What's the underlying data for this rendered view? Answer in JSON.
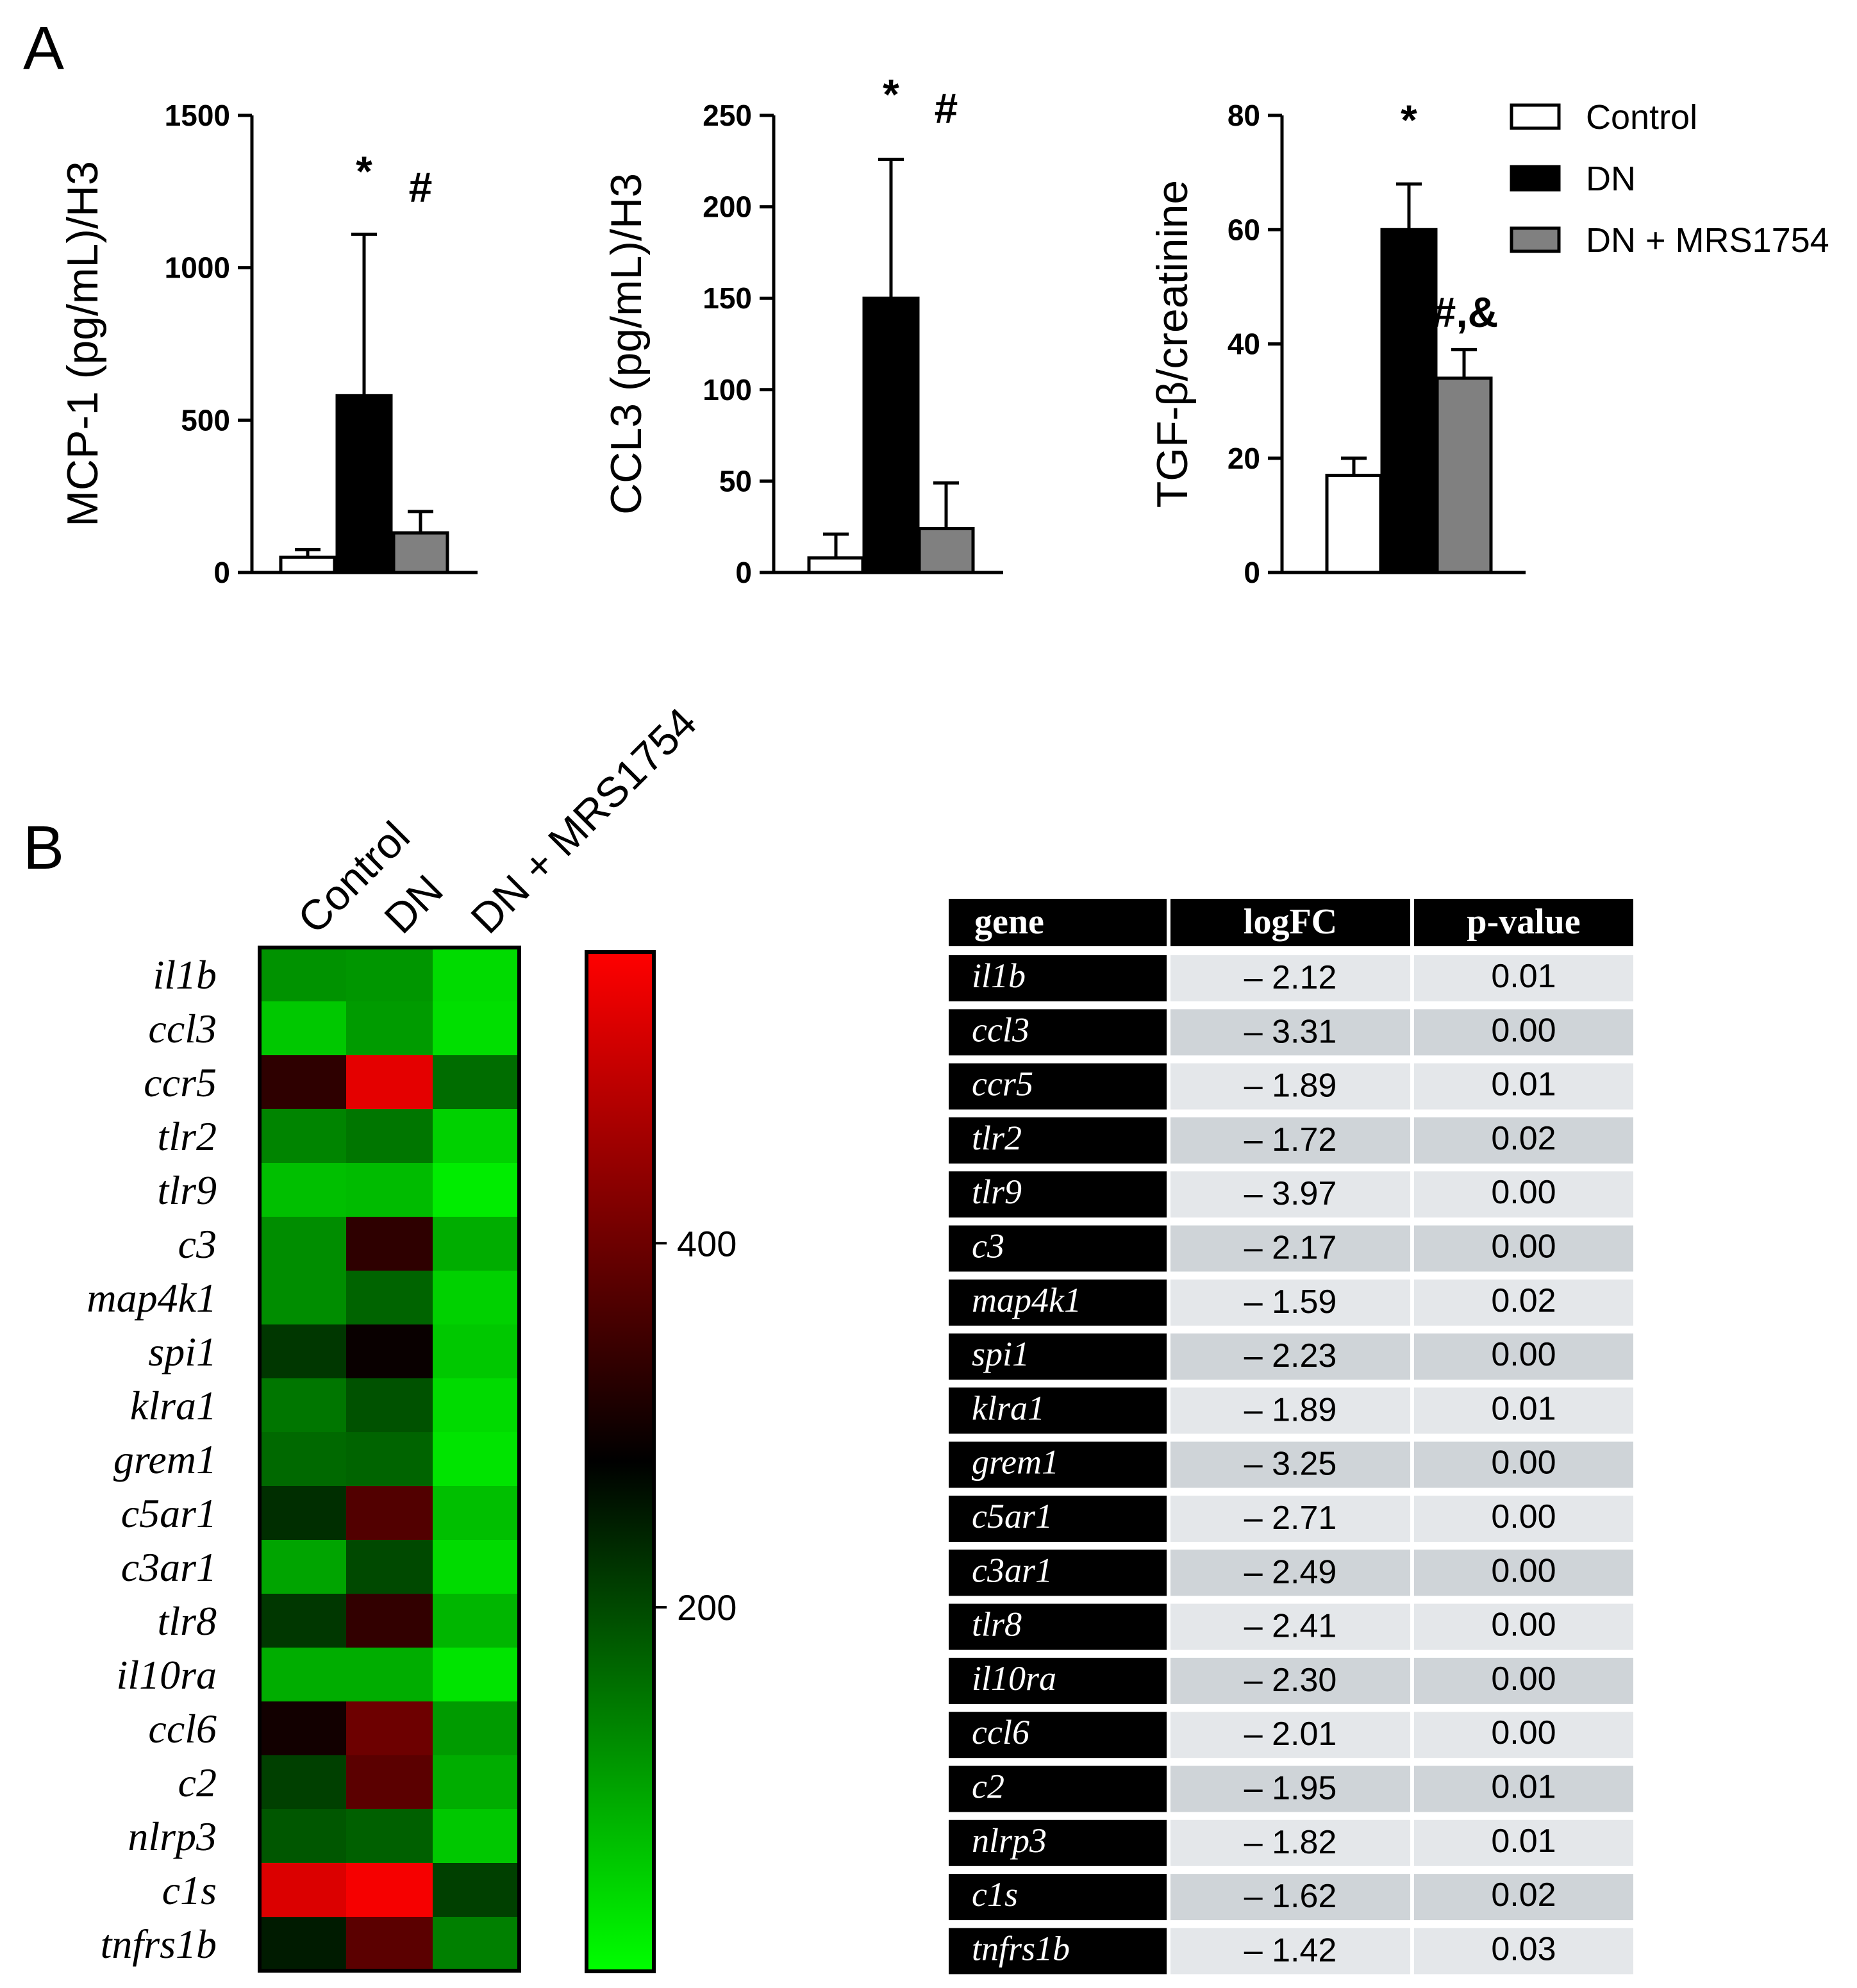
{
  "panels": {
    "a": "A",
    "b": "B"
  },
  "chart_data": [
    {
      "type": "bar",
      "ylabel": "MCP-1 (pg/mL)/H3",
      "ylim": [
        0,
        1500
      ],
      "yticks": [
        0,
        500,
        1000,
        1500
      ],
      "categories": [
        "Control",
        "DN",
        "DN + MRS1754"
      ],
      "values": [
        50,
        580,
        130
      ],
      "errors": [
        25,
        530,
        70
      ],
      "colors": [
        "#ffffff",
        "#000000",
        "#808080"
      ],
      "annotations": [
        {
          "bar": 1,
          "text": "*"
        },
        {
          "bar": 2,
          "text": "#"
        }
      ]
    },
    {
      "type": "bar",
      "ylabel": "CCL3 (pg/mL)/H3",
      "ylim": [
        0,
        250
      ],
      "yticks": [
        0,
        50,
        100,
        150,
        200,
        250
      ],
      "categories": [
        "Control",
        "DN",
        "DN + MRS1754"
      ],
      "values": [
        8,
        150,
        24
      ],
      "errors": [
        13,
        76,
        25
      ],
      "colors": [
        "#ffffff",
        "#000000",
        "#808080"
      ],
      "annotations": [
        {
          "bar": 1,
          "text": "*"
        },
        {
          "bar": 2,
          "text": "#"
        }
      ]
    },
    {
      "type": "bar",
      "ylabel": "TGF-β/creatinine",
      "ylim": [
        0,
        80
      ],
      "yticks": [
        0,
        20,
        40,
        60,
        80
      ],
      "categories": [
        "Control",
        "DN",
        "DN + MRS1754"
      ],
      "values": [
        17,
        60,
        34
      ],
      "errors": [
        3,
        8,
        5
      ],
      "colors": [
        "#ffffff",
        "#000000",
        "#808080"
      ],
      "annotations": [
        {
          "bar": 1,
          "text": "*"
        },
        {
          "bar": 2,
          "text": "#,&"
        }
      ]
    },
    {
      "type": "heatmap",
      "columns": [
        "Control",
        "DN",
        "DN + MRS1754"
      ],
      "rows": [
        "il1b",
        "ccl3",
        "ccr5",
        "tlr2",
        "tlr9",
        "c3",
        "map4k1",
        "spi1",
        "klra1",
        "grem1",
        "c5ar1",
        "c3ar1",
        "tlr8",
        "il10ra",
        "ccl6",
        "c2",
        "nlrp3",
        "c1s",
        "tnfrs1b"
      ],
      "values": [
        [
          120,
          115,
          40
        ],
        [
          60,
          110,
          35
        ],
        [
          330,
          530,
          160
        ],
        [
          135,
          150,
          50
        ],
        [
          70,
          75,
          20
        ],
        [
          125,
          330,
          90
        ],
        [
          125,
          170,
          50
        ],
        [
          220,
          290,
          60
        ],
        [
          150,
          190,
          40
        ],
        [
          165,
          170,
          30
        ],
        [
          230,
          370,
          70
        ],
        [
          100,
          200,
          40
        ],
        [
          220,
          335,
          80
        ],
        [
          90,
          90,
          30
        ],
        [
          300,
          400,
          110
        ],
        [
          210,
          380,
          90
        ],
        [
          185,
          175,
          60
        ],
        [
          520,
          550,
          210
        ],
        [
          250,
          380,
          140
        ]
      ],
      "scale": {
        "min": 0,
        "max": 560,
        "ticks": [
          200,
          400
        ],
        "low_color": "#00ff00",
        "mid_color": "#000000",
        "high_color": "#ff0000"
      }
    },
    {
      "type": "table",
      "headers": [
        "gene",
        "logFC",
        "p-value"
      ],
      "rows": [
        [
          "il1b",
          "– 2.12",
          "0.01"
        ],
        [
          "ccl3",
          "– 3.31",
          "0.00"
        ],
        [
          "ccr5",
          "– 1.89",
          "0.01"
        ],
        [
          "tlr2",
          "– 1.72",
          "0.02"
        ],
        [
          "tlr9",
          "– 3.97",
          "0.00"
        ],
        [
          "c3",
          "– 2.17",
          "0.00"
        ],
        [
          "map4k1",
          "– 1.59",
          "0.02"
        ],
        [
          "spi1",
          "– 2.23",
          "0.00"
        ],
        [
          "klra1",
          "– 1.89",
          "0.01"
        ],
        [
          "grem1",
          "– 3.25",
          "0.00"
        ],
        [
          "c5ar1",
          "– 2.71",
          "0.00"
        ],
        [
          "c3ar1",
          "– 2.49",
          "0.00"
        ],
        [
          "tlr8",
          "– 2.41",
          "0.00"
        ],
        [
          "il10ra",
          "– 2.30",
          "0.00"
        ],
        [
          "ccl6",
          "– 2.01",
          "0.00"
        ],
        [
          "c2",
          "– 1.95",
          "0.01"
        ],
        [
          "nlrp3",
          "– 1.82",
          "0.01"
        ],
        [
          "c1s",
          "– 1.62",
          "0.02"
        ],
        [
          "tnfrs1b",
          "– 1.42",
          "0.03"
        ]
      ]
    }
  ],
  "legend": [
    {
      "label": "Control",
      "color": "#ffffff"
    },
    {
      "label": "DN",
      "color": "#000000"
    },
    {
      "label": "DN + MRS1754",
      "color": "#808080"
    }
  ],
  "colors": {
    "table_header": "#000000",
    "table_gene_cell": "#000000",
    "row_light": "#e4e7ea",
    "row_dark": "#cfd4d8"
  }
}
